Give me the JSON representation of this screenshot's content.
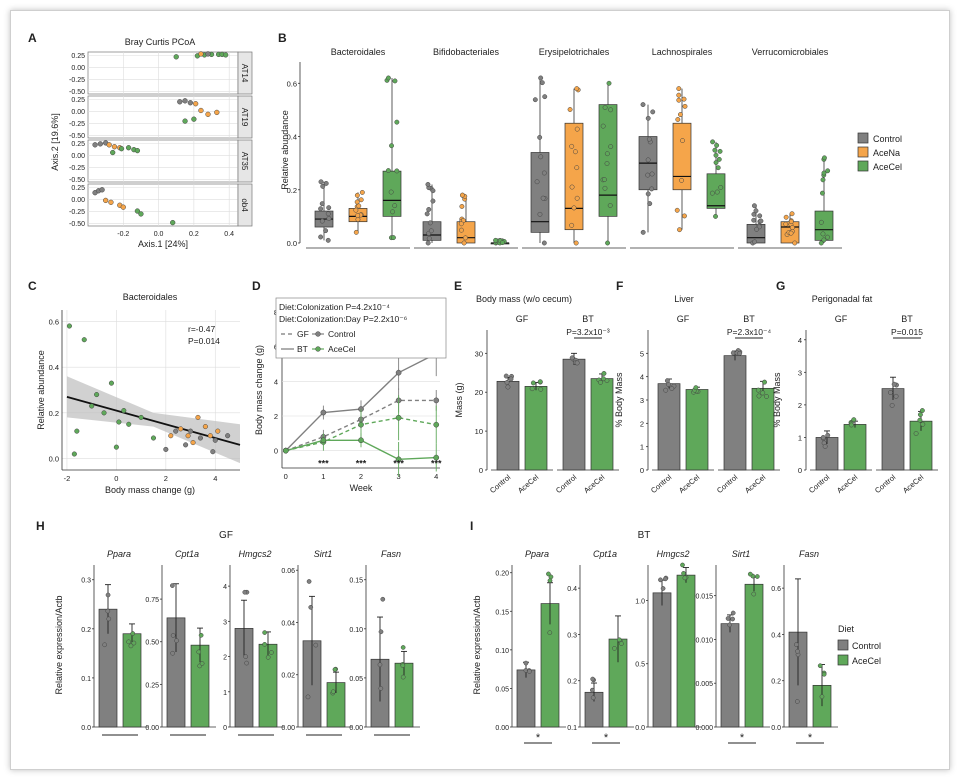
{
  "colors": {
    "control": "#808080",
    "acena": "#f5a54a",
    "acecel": "#5fa85a",
    "grid": "#dddddd",
    "axis": "#333333",
    "band": "#bdbdbd"
  },
  "panel_letters": [
    "A",
    "B",
    "C",
    "D",
    "E",
    "F",
    "G",
    "H",
    "I"
  ],
  "chart_data": [
    {
      "id": "A",
      "type": "scatter",
      "title": "Bray Curtis PCoA",
      "xlabel": "Axis.1   [24%]",
      "ylabel": "Axis.2   [19.6%]",
      "x_ticks": [
        "-0.2",
        "0.0",
        "0.2",
        "0.4"
      ],
      "y_ticks": [
        "0.25",
        "0.00",
        "-0.25",
        "-0.50"
      ],
      "facets": [
        {
          "name": "AT14",
          "points": [
            [
              0.22,
              0.24,
              "acecel"
            ],
            [
              0.26,
              0.26,
              "acecel"
            ],
            [
              0.3,
              0.27,
              "acecel"
            ],
            [
              0.34,
              0.27,
              "acecel"
            ],
            [
              0.36,
              0.27,
              "acecel"
            ],
            [
              0.38,
              0.26,
              "acecel"
            ],
            [
              0.24,
              0.28,
              "acena"
            ],
            [
              0.28,
              0.28,
              "control"
            ],
            [
              0.1,
              0.22,
              "acecel"
            ]
          ]
        },
        {
          "name": "AT19",
          "points": [
            [
              0.12,
              0.2,
              "control"
            ],
            [
              0.15,
              0.22,
              "control"
            ],
            [
              0.18,
              0.18,
              "control"
            ],
            [
              0.21,
              0.16,
              "acena"
            ],
            [
              0.24,
              0.02,
              "acena"
            ],
            [
              0.28,
              -0.06,
              "acena"
            ],
            [
              0.33,
              -0.02,
              "acena"
            ],
            [
              0.2,
              -0.16,
              "acecel"
            ],
            [
              0.15,
              -0.2,
              "acecel"
            ]
          ]
        },
        {
          "name": "AT35",
          "points": [
            [
              -0.36,
              0.22,
              "control"
            ],
            [
              -0.33,
              0.24,
              "control"
            ],
            [
              -0.3,
              0.26,
              "control"
            ],
            [
              -0.28,
              0.22,
              "acena"
            ],
            [
              -0.25,
              0.18,
              "acena"
            ],
            [
              -0.22,
              0.16,
              "acena"
            ],
            [
              -0.21,
              0.14,
              "acecel"
            ],
            [
              -0.17,
              0.16,
              "acecel"
            ],
            [
              -0.14,
              0.12,
              "acecel"
            ],
            [
              -0.12,
              0.1,
              "acecel"
            ],
            [
              -0.26,
              0.06,
              "acecel"
            ]
          ]
        },
        {
          "name": "ob4",
          "points": [
            [
              -0.36,
              0.14,
              "control"
            ],
            [
              -0.34,
              0.18,
              "control"
            ],
            [
              -0.32,
              0.2,
              "control"
            ],
            [
              -0.3,
              -0.02,
              "acena"
            ],
            [
              -0.27,
              -0.06,
              "acena"
            ],
            [
              -0.22,
              -0.12,
              "acena"
            ],
            [
              -0.2,
              -0.16,
              "acena"
            ],
            [
              -0.12,
              -0.24,
              "acecel"
            ],
            [
              -0.1,
              -0.3,
              "acecel"
            ],
            [
              0.08,
              -0.48,
              "acecel"
            ]
          ]
        }
      ]
    },
    {
      "id": "B",
      "type": "box",
      "ylabel": "Relative abundance",
      "y_ticks": [
        "0.0",
        "0.2",
        "0.4",
        "0.6"
      ],
      "ylim": [
        0,
        0.7
      ],
      "legend": [
        "Control",
        "AceNa",
        "AceCel"
      ],
      "facets": [
        {
          "name": "Bacteroidales",
          "boxes": [
            {
              "group": "control",
              "min": 0.01,
              "q1": 0.06,
              "med": 0.09,
              "q3": 0.12,
              "max": 0.23
            },
            {
              "group": "acena",
              "min": 0.04,
              "q1": 0.08,
              "med": 0.1,
              "q3": 0.13,
              "max": 0.19
            },
            {
              "group": "acecel",
              "min": 0.02,
              "q1": 0.1,
              "med": 0.16,
              "q3": 0.27,
              "max": 0.62
            }
          ]
        },
        {
          "name": "Bifidobacteriales",
          "boxes": [
            {
              "group": "control",
              "min": 0.0,
              "q1": 0.01,
              "med": 0.03,
              "q3": 0.08,
              "max": 0.22
            },
            {
              "group": "acena",
              "min": 0.0,
              "q1": 0.0,
              "med": 0.02,
              "q3": 0.08,
              "max": 0.18
            },
            {
              "group": "acecel",
              "min": 0.0,
              "q1": 0.0,
              "med": 0.0,
              "q3": 0.0,
              "max": 0.01
            }
          ]
        },
        {
          "name": "Erysipelotrichales",
          "boxes": [
            {
              "group": "control",
              "min": 0.0,
              "q1": 0.04,
              "med": 0.08,
              "q3": 0.34,
              "max": 0.62
            },
            {
              "group": "acena",
              "min": 0.0,
              "q1": 0.05,
              "med": 0.13,
              "q3": 0.45,
              "max": 0.58
            },
            {
              "group": "acecel",
              "min": 0.0,
              "q1": 0.1,
              "med": 0.18,
              "q3": 0.52,
              "max": 0.6
            }
          ]
        },
        {
          "name": "Lachnospirales",
          "boxes": [
            {
              "group": "control",
              "min": 0.04,
              "q1": 0.2,
              "med": 0.3,
              "q3": 0.4,
              "max": 0.52
            },
            {
              "group": "acena",
              "min": 0.05,
              "q1": 0.2,
              "med": 0.25,
              "q3": 0.45,
              "max": 0.58
            },
            {
              "group": "acecel",
              "min": 0.1,
              "q1": 0.13,
              "med": 0.14,
              "q3": 0.26,
              "max": 0.38
            }
          ]
        },
        {
          "name": "Verrucomicrobiales",
          "boxes": [
            {
              "group": "control",
              "min": 0.0,
              "q1": 0.0,
              "med": 0.02,
              "q3": 0.07,
              "max": 0.14
            },
            {
              "group": "acena",
              "min": 0.0,
              "q1": 0.0,
              "med": 0.06,
              "q3": 0.08,
              "max": 0.11
            },
            {
              "group": "acecel",
              "min": 0.0,
              "q1": 0.01,
              "med": 0.05,
              "q3": 0.12,
              "max": 0.32
            }
          ]
        }
      ]
    },
    {
      "id": "C",
      "type": "scatter",
      "title": "Bacteroidales",
      "xlabel": "Body mass change (g)",
      "ylabel": "Relative abundance",
      "x_ticks": [
        "-2",
        "0",
        "2",
        "4"
      ],
      "y_ticks": [
        "0.0",
        "0.2",
        "0.4",
        "0.6"
      ],
      "xlim": [
        -2.2,
        5
      ],
      "ylim": [
        -0.05,
        0.65
      ],
      "annotation": [
        "r=-0.47",
        "P=0.014"
      ],
      "fit": [
        [
          -2,
          0.27
        ],
        [
          5,
          0.06
        ]
      ],
      "points": [
        [
          -1.9,
          0.58,
          "acecel"
        ],
        [
          -1.6,
          0.12,
          "acecel"
        ],
        [
          -1.3,
          0.52,
          "acecel"
        ],
        [
          -1.0,
          0.23,
          "acecel"
        ],
        [
          -0.8,
          0.28,
          "acecel"
        ],
        [
          -0.5,
          0.2,
          "acecel"
        ],
        [
          -0.2,
          0.33,
          "acecel"
        ],
        [
          0.1,
          0.16,
          "acecel"
        ],
        [
          0.3,
          0.21,
          "acecel"
        ],
        [
          0.5,
          0.15,
          "acecel"
        ],
        [
          1.0,
          0.18,
          "acecel"
        ],
        [
          1.5,
          0.09,
          "acecel"
        ],
        [
          -1.7,
          0.02,
          "acecel"
        ],
        [
          0.0,
          0.05,
          "acecel"
        ],
        [
          2.6,
          0.13,
          "acena"
        ],
        [
          2.9,
          0.1,
          "acena"
        ],
        [
          3.1,
          0.07,
          "acena"
        ],
        [
          3.3,
          0.18,
          "acena"
        ],
        [
          3.8,
          0.1,
          "acena"
        ],
        [
          4.1,
          0.12,
          "acena"
        ],
        [
          2.2,
          0.1,
          "acena"
        ],
        [
          3.6,
          0.14,
          "acena"
        ],
        [
          2.4,
          0.12,
          "control"
        ],
        [
          2.8,
          0.06,
          "control"
        ],
        [
          3.0,
          0.12,
          "control"
        ],
        [
          3.4,
          0.09,
          "control"
        ],
        [
          4.0,
          0.08,
          "control"
        ],
        [
          4.5,
          0.1,
          "control"
        ],
        [
          2.0,
          0.04,
          "control"
        ],
        [
          3.9,
          0.03,
          "control"
        ]
      ]
    },
    {
      "id": "D",
      "type": "line",
      "xlabel": "Week",
      "ylabel": "Body mass change (g)",
      "x_ticks": [
        "0",
        "1",
        "2",
        "3",
        "4"
      ],
      "y_ticks": [
        "0",
        "2",
        "4",
        "6",
        "8"
      ],
      "ylim": [
        -1,
        8
      ],
      "annotation": [
        "Diet:Colonization P=4.2x10⁻⁴",
        "Diet:Colonization:Day P=2.2x10⁻⁶"
      ],
      "legend": {
        "GF": "GF",
        "BT": "BT",
        "control": "Control",
        "acecel": "AceCel"
      },
      "stars": [
        "***",
        "***",
        "***",
        "***"
      ],
      "series": [
        {
          "group": "control",
          "line": "solid",
          "values": [
            0,
            2.2,
            2.4,
            4.5,
            5.6
          ],
          "err": [
            0,
            0.4,
            0.5,
            1.0,
            1.3
          ]
        },
        {
          "group": "control",
          "line": "dashed",
          "values": [
            0,
            0.8,
            1.8,
            2.9,
            2.9
          ],
          "err": [
            0,
            0.4,
            0.5,
            0.7,
            0.6
          ]
        },
        {
          "group": "acecel",
          "line": "dashed",
          "values": [
            0,
            0.5,
            1.5,
            1.9,
            1.5
          ],
          "err": [
            0,
            0.5,
            0.9,
            1.3,
            1.1
          ]
        },
        {
          "group": "acecel",
          "line": "solid",
          "values": [
            0,
            0.6,
            0.6,
            -0.5,
            -0.4
          ],
          "err": [
            0,
            0.3,
            0.4,
            1.0,
            0.8
          ]
        }
      ]
    },
    {
      "id": "E",
      "type": "bar",
      "title": "Body mass (w/o cecum)",
      "ylabel": "Mass (g)",
      "y_ticks": [
        "0",
        "10",
        "20",
        "30"
      ],
      "ylim": [
        0,
        36
      ],
      "facets": [
        "GF",
        "BT"
      ],
      "pvalue": "P=3.2x10⁻³",
      "categories": [
        "Control",
        "AceCel"
      ],
      "bars": [
        {
          "facet": 0,
          "group": "control",
          "value": 22.8,
          "err": 1.0
        },
        {
          "facet": 0,
          "group": "acecel",
          "value": 21.5,
          "err": 1.0
        },
        {
          "facet": 1,
          "group": "control",
          "value": 28.5,
          "err": 1.5
        },
        {
          "facet": 1,
          "group": "acecel",
          "value": 23.5,
          "err": 1.2
        }
      ]
    },
    {
      "id": "F",
      "type": "bar",
      "title": "Liver",
      "ylabel": "% Body Mass",
      "y_ticks": [
        "0",
        "1",
        "2",
        "3",
        "4",
        "5"
      ],
      "ylim": [
        0,
        6
      ],
      "facets": [
        "GF",
        "BT"
      ],
      "pvalue": "P=2.3x10⁻⁴",
      "categories": [
        "Control",
        "AceCel"
      ],
      "bars": [
        {
          "facet": 0,
          "group": "control",
          "value": 3.7,
          "err": 0.2
        },
        {
          "facet": 0,
          "group": "acecel",
          "value": 3.45,
          "err": 0.1
        },
        {
          "facet": 1,
          "group": "control",
          "value": 4.9,
          "err": 0.2
        },
        {
          "facet": 1,
          "group": "acecel",
          "value": 3.5,
          "err": 0.3
        }
      ]
    },
    {
      "id": "G",
      "type": "bar",
      "title": "Perigonadal fat",
      "ylabel": "% Body Mass",
      "y_ticks": [
        "0",
        "1",
        "2",
        "3",
        "4"
      ],
      "ylim": [
        0,
        4.3
      ],
      "facets": [
        "GF",
        "BT"
      ],
      "pvalue": "P=0.015",
      "categories": [
        "Control",
        "AceCel"
      ],
      "bars": [
        {
          "facet": 0,
          "group": "control",
          "value": 1.0,
          "err": 0.2
        },
        {
          "facet": 0,
          "group": "acecel",
          "value": 1.4,
          "err": 0.1
        },
        {
          "facet": 1,
          "group": "control",
          "value": 2.5,
          "err": 0.35
        },
        {
          "facet": 1,
          "group": "acecel",
          "value": 1.5,
          "err": 0.3
        }
      ]
    },
    {
      "id": "H",
      "type": "bar",
      "title": "GF",
      "ylabel": "Relative expression/Actb",
      "genes": [
        {
          "name": "Ppara",
          "ticks": [
            "0.0",
            "0.1",
            "0.2",
            "0.3"
          ],
          "max": 0.33,
          "values": [
            0.24,
            0.19
          ],
          "errs": [
            0.05,
            0.02
          ]
        },
        {
          "name": "Cpt1a",
          "ticks": [
            "0.00",
            "0.25",
            "0.50",
            "0.75"
          ],
          "max": 0.95,
          "values": [
            0.64,
            0.48
          ],
          "errs": [
            0.2,
            0.1
          ]
        },
        {
          "name": "Hmgcs2",
          "ticks": [
            "0",
            "1",
            "2",
            "3",
            "4"
          ],
          "max": 4.6,
          "values": [
            2.8,
            2.35
          ],
          "errs": [
            0.8,
            0.35
          ]
        },
        {
          "name": "Sirt1",
          "ticks": [
            "0.00",
            "0.02",
            "0.04",
            "0.06"
          ],
          "max": 0.062,
          "values": [
            0.033,
            0.017
          ],
          "errs": [
            0.017,
            0.004
          ]
        },
        {
          "name": "Fasn",
          "ticks": [
            "0.00",
            "0.05",
            "0.10",
            "0.15"
          ],
          "max": 0.165,
          "values": [
            0.069,
            0.065
          ],
          "errs": [
            0.043,
            0.012
          ]
        }
      ]
    },
    {
      "id": "I",
      "type": "bar",
      "title": "BT",
      "ylabel": "Relative expression/Actb",
      "legend_title": "Diet",
      "legend": [
        "Control",
        "AceCel"
      ],
      "star": "*",
      "genes": [
        {
          "name": "Ppara",
          "ticks": [
            "0.00",
            "0.05",
            "0.10",
            "0.15",
            "0.20"
          ],
          "max": 0.21,
          "values": [
            0.074,
            0.16
          ],
          "errs": [
            0.01,
            0.027
          ],
          "sig": true
        },
        {
          "name": "Cpt1a",
          "ticks": [
            "0.1",
            "0.2",
            "0.3",
            "0.4"
          ],
          "min": 0.1,
          "max": 0.45,
          "values": [
            0.175,
            0.29
          ],
          "errs": [
            0.02,
            0.05
          ],
          "sig": true
        },
        {
          "name": "Hmgcs2",
          "ticks": [
            "0.0",
            "0.5",
            "1.0"
          ],
          "max": 1.28,
          "values": [
            1.06,
            1.2
          ],
          "errs": [
            0.1,
            0.06
          ],
          "sig": false
        },
        {
          "name": "Sirt1",
          "ticks": [
            "0.000",
            "0.005",
            "0.010",
            "0.015"
          ],
          "max": 0.0185,
          "values": [
            0.0118,
            0.0163
          ],
          "errs": [
            0.001,
            0.0008
          ],
          "sig": true
        },
        {
          "name": "Fasn",
          "ticks": [
            "0.0",
            "0.2",
            "0.4",
            "0.6"
          ],
          "max": 0.7,
          "values": [
            0.41,
            0.18
          ],
          "errs": [
            0.23,
            0.09
          ],
          "sig": true
        }
      ]
    }
  ]
}
